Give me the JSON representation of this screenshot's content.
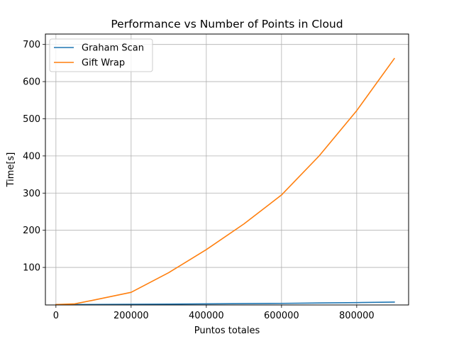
{
  "chart_data": {
    "type": "line",
    "title": "Performance vs Number of Points in Cloud",
    "xlabel": "Puntos totales",
    "ylabel": "Time[s]",
    "xlim": [
      -28000,
      938000
    ],
    "ylim": [
      -1,
      728
    ],
    "xticks": [
      0,
      200000,
      400000,
      600000,
      800000
    ],
    "yticks": [
      100,
      200,
      300,
      400,
      500,
      600,
      700
    ],
    "grid": true,
    "legend_position": "top-left",
    "series": [
      {
        "name": "Graham Scan",
        "color": "#1f77b4",
        "x": [
          0,
          50000,
          100000,
          200000,
          300000,
          400000,
          500000,
          600000,
          700000,
          800000,
          900000
        ],
        "y": [
          0.0,
          0.2,
          0.4,
          0.9,
          1.4,
          2.0,
          2.6,
          3.3,
          4.3,
          5.4,
          6.7
        ]
      },
      {
        "name": "Gift Wrap",
        "color": "#ff7f0e",
        "x": [
          0,
          50000,
          100000,
          200000,
          300000,
          400000,
          500000,
          600000,
          700000,
          800000,
          900000
        ],
        "y": [
          0,
          2,
          12,
          33,
          86,
          148,
          217,
          295,
          400,
          522,
          662
        ]
      }
    ]
  }
}
